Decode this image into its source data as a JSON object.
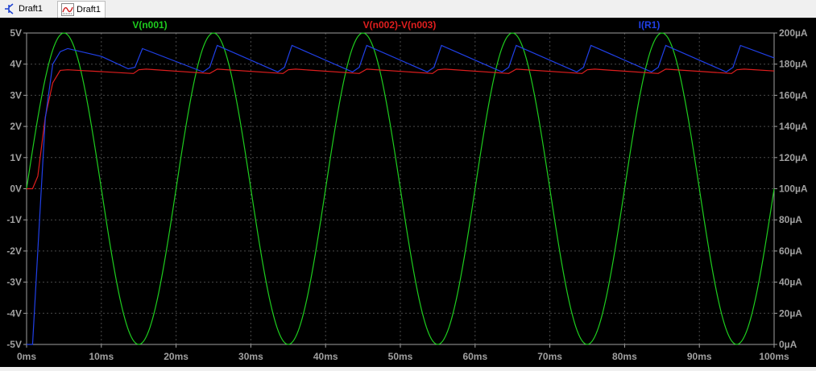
{
  "tabs": [
    {
      "label": "Draft1",
      "icon": "schematic-icon"
    },
    {
      "label": "Draft1",
      "icon": "waveform-icon"
    }
  ],
  "colors": {
    "background": "#000000",
    "axis": "#a0a0a0",
    "grid": "#4a4a4a",
    "green": "#1ecc1e",
    "red": "#e01e1e",
    "blue": "#2040e8"
  },
  "chart_data": {
    "type": "line",
    "x_unit": "ms",
    "xlim": [
      0,
      100
    ],
    "ylim_left": [
      -5,
      5
    ],
    "ylim_right": [
      0,
      200
    ],
    "x_ticks": [
      "0ms",
      "10ms",
      "20ms",
      "30ms",
      "40ms",
      "50ms",
      "60ms",
      "70ms",
      "80ms",
      "90ms",
      "100ms"
    ],
    "y_left_ticks": [
      "5V",
      "4V",
      "3V",
      "2V",
      "1V",
      "0V",
      "-1V",
      "-2V",
      "-3V",
      "-4V",
      "-5V"
    ],
    "y_right_ticks": [
      "200µA",
      "180µA",
      "160µA",
      "140µA",
      "120µA",
      "100µA",
      "80µA",
      "60µA",
      "40µA",
      "20µA",
      "0µA"
    ],
    "series": [
      {
        "name": "V(n001)",
        "color": "#1ecc1e",
        "axis": "left",
        "x": [
          0,
          1,
          2,
          3,
          4,
          5,
          6,
          7,
          8,
          9,
          10,
          11,
          12,
          13,
          14,
          15,
          16,
          17,
          18,
          19,
          20,
          21,
          22,
          23,
          24,
          25,
          26,
          27,
          28,
          29,
          30,
          31,
          32,
          33,
          34,
          35,
          36,
          37,
          38,
          39,
          40,
          41,
          42,
          43,
          44,
          45,
          46,
          47,
          48,
          49,
          50,
          51,
          52,
          53,
          54,
          55,
          56,
          57,
          58,
          59,
          60,
          61,
          62,
          63,
          64,
          65,
          66,
          67,
          68,
          69,
          70,
          71,
          72,
          73,
          74,
          75,
          76,
          77,
          78,
          79,
          80,
          81,
          82,
          83,
          84,
          85,
          86,
          87,
          88,
          89,
          90,
          91,
          92,
          93,
          94,
          95,
          96,
          97,
          98,
          99,
          100
        ],
        "y": [
          0,
          1.55,
          2.94,
          4.05,
          4.76,
          5,
          4.76,
          4.05,
          2.94,
          1.55,
          0,
          -1.55,
          -2.94,
          -4.05,
          -4.76,
          -5,
          -4.76,
          -4.05,
          -2.94,
          -1.55,
          0,
          1.55,
          2.94,
          4.05,
          4.76,
          5,
          4.76,
          4.05,
          2.94,
          1.55,
          0,
          -1.55,
          -2.94,
          -4.05,
          -4.76,
          -5,
          -4.76,
          -4.05,
          -2.94,
          -1.55,
          0,
          1.55,
          2.94,
          4.05,
          4.76,
          5,
          4.76,
          4.05,
          2.94,
          1.55,
          0,
          -1.55,
          -2.94,
          -4.05,
          -4.76,
          -5,
          -4.76,
          -4.05,
          -2.94,
          -1.55,
          0,
          1.55,
          2.94,
          4.05,
          4.76,
          5,
          4.76,
          4.05,
          2.94,
          1.55,
          0,
          -1.55,
          -2.94,
          -4.05,
          -4.76,
          -5,
          -4.76,
          -4.05,
          -2.94,
          -1.55,
          0,
          1.55,
          2.94,
          4.05,
          4.76,
          5,
          4.76,
          4.05,
          2.94,
          1.55,
          0,
          -1.55,
          -2.94,
          -4.05,
          -4.76,
          -5,
          -4.76,
          -4.05,
          -2.94,
          -1.55,
          0
        ]
      },
      {
        "name": "V(n002)-V(n003)",
        "color": "#e01e1e",
        "axis": "left",
        "x": [
          0,
          0.8,
          1.5,
          2.5,
          3.5,
          4.5,
          5.5,
          10,
          14.3,
          15,
          16,
          24.5,
          25.5,
          34.3,
          35,
          36,
          44.5,
          45.5,
          54.3,
          55,
          56,
          64.5,
          65.5,
          74.3,
          75,
          76,
          84.5,
          85.5,
          94.3,
          95,
          96,
          100
        ],
        "y": [
          0,
          0,
          0.4,
          2.3,
          3.4,
          3.8,
          3.82,
          3.76,
          3.7,
          3.82,
          3.84,
          3.7,
          3.84,
          3.7,
          3.82,
          3.84,
          3.7,
          3.84,
          3.7,
          3.82,
          3.84,
          3.7,
          3.84,
          3.7,
          3.82,
          3.84,
          3.7,
          3.84,
          3.7,
          3.82,
          3.84,
          3.78
        ]
      },
      {
        "name": "I(R1)",
        "color": "#2040e8",
        "axis": "right",
        "x": [
          0,
          0.8,
          1.5,
          2.5,
          3.5,
          4.5,
          5.5,
          10,
          13.6,
          14.5,
          15.5,
          23.6,
          24.5,
          25.5,
          33.6,
          34.5,
          35.5,
          43.6,
          44.5,
          45.5,
          53.6,
          54.5,
          55.5,
          63.6,
          64.5,
          65.5,
          73.6,
          74.5,
          75.5,
          83.6,
          84.5,
          85.5,
          93.6,
          94.5,
          95.5,
          100
        ],
        "y": [
          0,
          0,
          60,
          145,
          180,
          188,
          190,
          185,
          177,
          178,
          190,
          175,
          178,
          192,
          175,
          178,
          192,
          175,
          178,
          192,
          175,
          178,
          192,
          175,
          178,
          192,
          175,
          178,
          192,
          175,
          178,
          192,
          175,
          178,
          192,
          184
        ]
      }
    ],
    "grid": true,
    "legend": "top"
  }
}
